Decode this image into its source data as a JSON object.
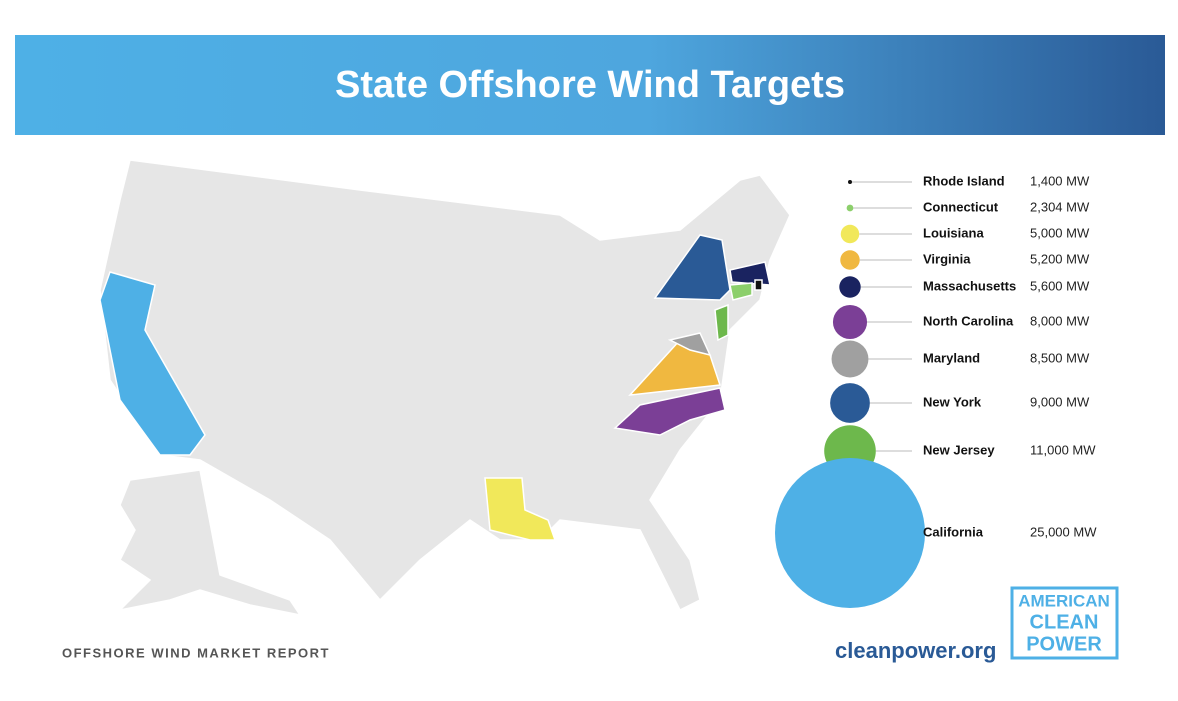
{
  "header": {
    "title": "State Offshore Wind Targets"
  },
  "legend": {
    "items": [
      {
        "state": "Rhode Island",
        "value": 1400,
        "value_label": "1,400 MW",
        "color": "#111111"
      },
      {
        "state": "Connecticut",
        "value": 2304,
        "value_label": "2,304 MW",
        "color": "#8ccf6b"
      },
      {
        "state": "Louisiana",
        "value": 5000,
        "value_label": "5,000 MW",
        "color": "#f1e85a"
      },
      {
        "state": "Virginia",
        "value": 5200,
        "value_label": "5,200 MW",
        "color": "#f0b840"
      },
      {
        "state": "Massachusetts",
        "value": 5600,
        "value_label": "5,600 MW",
        "color": "#1a2360"
      },
      {
        "state": "North Carolina",
        "value": 8000,
        "value_label": "8,000 MW",
        "color": "#7b3f96"
      },
      {
        "state": "Maryland",
        "value": 8500,
        "value_label": "8,500 MW",
        "color": "#a0a0a0"
      },
      {
        "state": "New York",
        "value": 9000,
        "value_label": "9,000 MW",
        "color": "#2a5a96"
      },
      {
        "state": "New Jersey",
        "value": 11000,
        "value_label": "11,000 MW",
        "color": "#6db84c"
      },
      {
        "state": "California",
        "value": 25000,
        "value_label": "25,000 MW",
        "color": "#4eb0e6"
      }
    ]
  },
  "footer": {
    "report": "OFFSHORE WIND MARKET REPORT",
    "url": "cleanpower.org"
  },
  "logo": {
    "lines": [
      "AMERICAN",
      "CLEAN",
      "POWER"
    ]
  }
}
